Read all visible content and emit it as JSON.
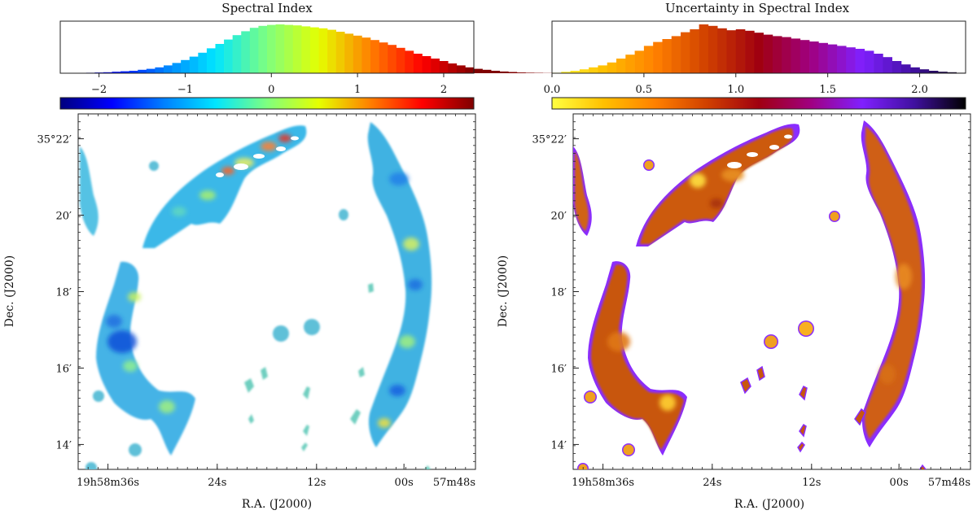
{
  "panels": [
    {
      "id": "spectral_index",
      "title": "Spectral Index",
      "colormap": [
        "#00007f",
        "#0000ff",
        "#007fff",
        "#00e5ff",
        "#7fff7f",
        "#e5ff00",
        "#ff7f00",
        "#ff0000",
        "#7f0000"
      ],
      "ylabel": "Dec. (J2000)",
      "xlabel": "R.A. (J2000)",
      "ra_ticks": [
        "19h58m36s",
        "24s",
        "12s",
        "00s",
        "57m48s"
      ],
      "dec_ticks": [
        "35°22′",
        "20′",
        "18′",
        "16′",
        "14′"
      ]
    },
    {
      "id": "uncertainty",
      "title": "Uncertainty in Spectral Index",
      "colormap": [
        "#ffff40",
        "#ffc000",
        "#ff8000",
        "#d04000",
        "#a00010",
        "#a00080",
        "#8020ff",
        "#4010a0",
        "#000000"
      ],
      "ylabel": "Dec. (J2000)",
      "xlabel": "R.A. (J2000)",
      "ra_ticks": [
        "19h58m36s",
        "24s",
        "12s",
        "00s",
        "57m48s"
      ],
      "dec_ticks": [
        "35°22′",
        "20′",
        "18′",
        "16′",
        "14′"
      ]
    }
  ],
  "chart_data": [
    {
      "type": "bar",
      "title": "Spectral Index",
      "xlabel": "",
      "ylabel": "",
      "xlim": [
        -2.45,
        2.35
      ],
      "tick_values": [
        -2,
        -1,
        0,
        1,
        2
      ],
      "tick_labels": [
        "−2",
        "−1",
        "0",
        "1",
        "2"
      ],
      "bin_width": 0.1,
      "bin_start": -2.45,
      "values": [
        0.2,
        0.4,
        0.7,
        1,
        1.5,
        2,
        3,
        4,
        5,
        7,
        9,
        12,
        16,
        21,
        27,
        34,
        42,
        51,
        60,
        69,
        78,
        86,
        93,
        97,
        99,
        100,
        99,
        98,
        96,
        94,
        92,
        89,
        85,
        81,
        77,
        73,
        68,
        63,
        58,
        52,
        46,
        40,
        35,
        30,
        25,
        20,
        16,
        12,
        9,
        7,
        5,
        3.5,
        2.5,
        1.5,
        1,
        0.7,
        0.4,
        0.2,
        0.1
      ],
      "colormap_ticks": {
        "vmin": -2.45,
        "vmax": 2.35
      }
    },
    {
      "type": "bar",
      "title": "Uncertainty in Spectral Index",
      "xlabel": "",
      "ylabel": "",
      "xlim": [
        0.0,
        2.25
      ],
      "tick_values": [
        0.0,
        0.5,
        1.0,
        1.5,
        2.0
      ],
      "tick_labels": [
        "0.0",
        "0.5",
        "1.0",
        "1.5",
        "2.0"
      ],
      "bin_width": 0.05,
      "bin_start": 0.0,
      "values": [
        1,
        3,
        5,
        8,
        12,
        16,
        22,
        30,
        38,
        46,
        56,
        64,
        70,
        76,
        84,
        90,
        100,
        97,
        92,
        88,
        90,
        87,
        83,
        79,
        76,
        74,
        71,
        68,
        65,
        62,
        59,
        56,
        53,
        50,
        46,
        40,
        33,
        25,
        18,
        12,
        8,
        5,
        3,
        2,
        1
      ],
      "colormap_ticks": {
        "vmin": 0.0,
        "vmax": 2.25
      }
    }
  ]
}
